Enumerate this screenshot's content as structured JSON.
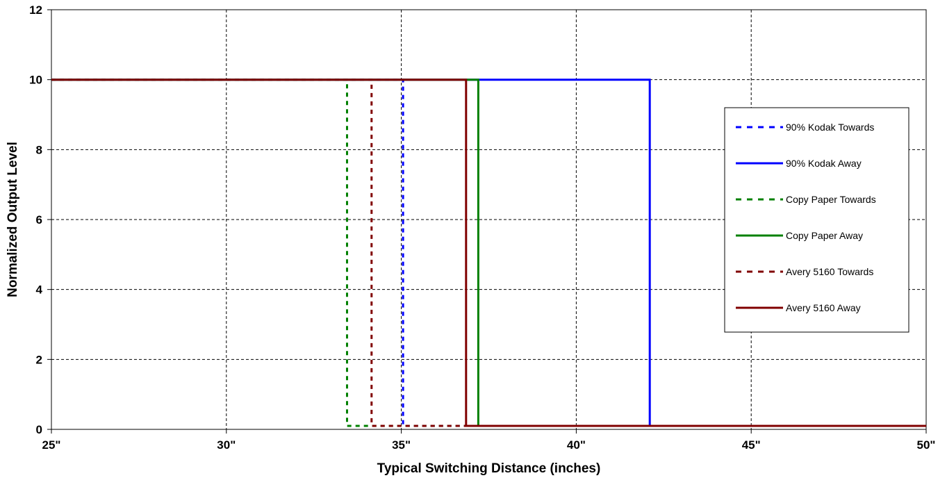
{
  "chart_data": {
    "type": "line",
    "title": "",
    "xlabel": "Typical Switching Distance (inches)",
    "ylabel": "Normalized Output Level",
    "xlim": [
      25,
      50
    ],
    "ylim": [
      0,
      12
    ],
    "x_ticks": [
      25,
      30,
      35,
      40,
      45,
      50
    ],
    "x_tick_labels": [
      "25\"",
      "30\"",
      "35\"",
      "40\"",
      "45\"",
      "50\""
    ],
    "y_ticks": [
      0,
      2,
      4,
      6,
      8,
      10,
      12
    ],
    "y_tick_labels": [
      "0",
      "2",
      "4",
      "6",
      "8",
      "10",
      "12"
    ],
    "grid": true,
    "legend_position": "right",
    "series": [
      {
        "name": "90% Kodak Towards",
        "color": "#0000ff",
        "dash": true,
        "points": [
          [
            25,
            10
          ],
          [
            35.05,
            10
          ],
          [
            35.05,
            0.1
          ],
          [
            50,
            0.1
          ]
        ]
      },
      {
        "name": "90% Kodak Away",
        "color": "#0000ff",
        "dash": false,
        "points": [
          [
            25,
            10
          ],
          [
            42.1,
            10
          ],
          [
            42.1,
            0.1
          ],
          [
            50,
            0.1
          ]
        ]
      },
      {
        "name": "Copy Paper Towards",
        "color": "#008000",
        "dash": true,
        "points": [
          [
            25,
            10
          ],
          [
            33.45,
            10
          ],
          [
            33.45,
            0.1
          ],
          [
            50,
            0.1
          ]
        ]
      },
      {
        "name": "Copy Paper Away",
        "color": "#008000",
        "dash": false,
        "points": [
          [
            25,
            10
          ],
          [
            37.2,
            10
          ],
          [
            37.2,
            0.1
          ],
          [
            50,
            0.1
          ]
        ]
      },
      {
        "name": "Avery 5160 Towards",
        "color": "#800000",
        "dash": true,
        "points": [
          [
            25,
            10
          ],
          [
            34.15,
            10
          ],
          [
            34.15,
            0.1
          ],
          [
            50,
            0.1
          ]
        ]
      },
      {
        "name": "Avery 5160 Away",
        "color": "#800000",
        "dash": false,
        "points": [
          [
            25,
            10
          ],
          [
            36.85,
            10
          ],
          [
            36.85,
            0.1
          ],
          [
            50,
            0.1
          ]
        ]
      }
    ]
  }
}
